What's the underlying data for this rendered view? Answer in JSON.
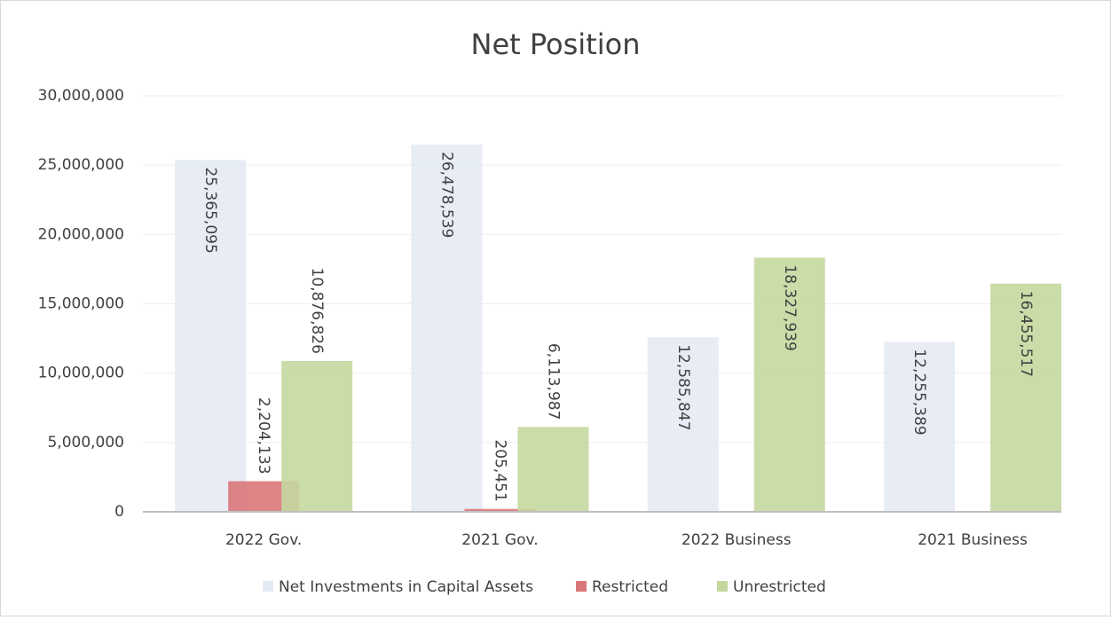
{
  "chart_data": {
    "type": "bar",
    "title": "Net Position",
    "categories": [
      "2022 Gov.",
      "2021 Gov.",
      "2022 Business",
      "2021 Business"
    ],
    "series": [
      {
        "name": "Net Investments in Capital Assets",
        "color": "#e4eaf4",
        "values": [
          25365095,
          26478539,
          12585847,
          12255389
        ],
        "value_labels": [
          "25,365,095",
          "26,478,539",
          "12,585,847",
          "12,255,389"
        ]
      },
      {
        "name": "Restricted",
        "color": "#d9777a",
        "values": [
          2204133,
          205451,
          null,
          null
        ],
        "value_labels": [
          "2,204,133",
          "205,451",
          null,
          null
        ]
      },
      {
        "name": "Unrestricted",
        "color": "#c4d89e",
        "values": [
          10876826,
          6113987,
          18327939,
          16455517
        ],
        "value_labels": [
          "10,876,826",
          "6,113,987",
          "18,327,939",
          "16,455,517"
        ]
      }
    ],
    "ylim": [
      0,
      30000000
    ],
    "yticks": [
      {
        "value": 0,
        "label": "0"
      },
      {
        "value": 5000000,
        "label": "5,000,000"
      },
      {
        "value": 10000000,
        "label": "10,000,000"
      },
      {
        "value": 15000000,
        "label": "15,000,000"
      },
      {
        "value": 20000000,
        "label": "20,000,000"
      },
      {
        "value": 25000000,
        "label": "25,000,000"
      },
      {
        "value": 30000000,
        "label": "30,000,000"
      }
    ],
    "grid": true,
    "legend": "bottom"
  }
}
